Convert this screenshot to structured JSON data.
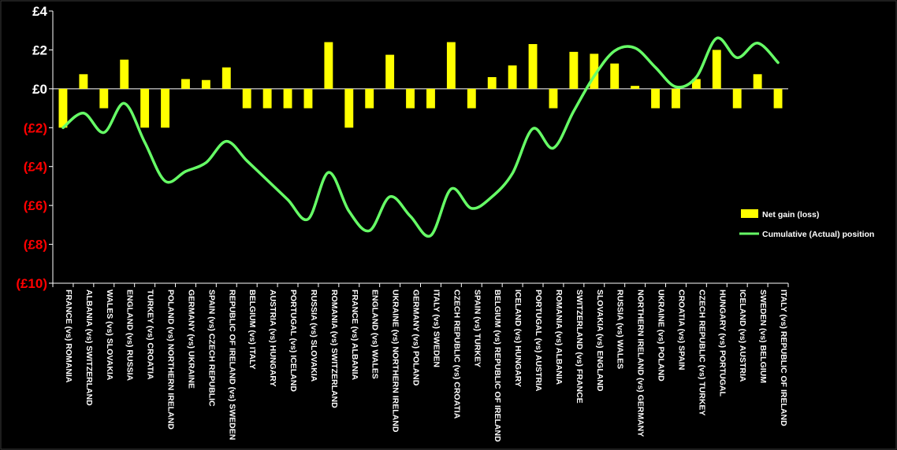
{
  "chart_data": {
    "type": "bar",
    "categories": [
      "FRANCE (vs) ROMANIA",
      "ALBANIA (vs) SWITZERLAND",
      "WALES (vs) SLOVAKIA",
      "ENGLAND (vs) RUSSIA",
      "TURKEY (vs) CROATIA",
      "POLAND (vs) NORTHERN IRELAND",
      "GERMANY (vs) UKRAINE",
      "SPAIN (vs) CZECH REPUBLIC",
      "REPUBLIC OF IRELAND (vs) SWEDEN",
      "BELGIUM (vs) ITALY",
      "AUSTRIA (vs) HUNGARY",
      "PORTUGAL (vs) ICELAND",
      "RUSSIA (vs) SLOVAKIA",
      "ROMANIA (vs) SWITZERLAND",
      "FRANCE (vs) ALBANIA",
      "ENGLAND (vs) WALES",
      "UKRAINE (vs) NORTHERN IRELAND",
      "GERMANY (vs) POLAND",
      "ITALY (vs) SWEDEN",
      "CZECH REPUBLIC (vs) CROATIA",
      "SPAIN (vs) TURKEY",
      "BELGIUM (vs) REPUBLIC OF IRELAND",
      "ICELAND (vs) HUNGARY",
      "PORTUGAL (vs) AUSTRIA",
      "ROMANIA (vs) ALBANIA",
      "SWITZERLAND (vs) FRANCE",
      "SLOVAKIA (vs) ENGLAND",
      "RUSSIA (vs) WALES",
      "NORTHERN IRELAND (vs) GERMANY",
      "UKRAINE (vs) POLAND",
      "CROATIA (vs) SPAIN",
      "CZECH REPUBLIC (vs) TURKEY",
      "HUNGARY (vs) PORTUGAL",
      "ICELAND (vs) AUSTRIA",
      "SWEDEN (vs) BELGIUM",
      "ITALY (vs) REPUBLIC OF IRELAND"
    ],
    "series": [
      {
        "name": "Net gain (loss)",
        "type": "bar",
        "color": "#FFFF00",
        "values": [
          -2,
          0.75,
          -1,
          1.5,
          -2,
          -2,
          0.5,
          0.45,
          1.1,
          -1,
          -1,
          -1,
          -1,
          2.4,
          -2,
          -1,
          1.75,
          -1,
          -1,
          2.4,
          -1,
          0.6,
          1.2,
          2.3,
          -1,
          1.9,
          1.8,
          1.3,
          0.15,
          -1,
          -1,
          0.5,
          2,
          -1,
          0.75,
          -1
        ]
      },
      {
        "name": "Cumulative (Actual) position",
        "type": "line",
        "smooth": true,
        "color": "#66FF66",
        "values": [
          -2,
          -1.25,
          -2.25,
          -0.75,
          -2.75,
          -4.75,
          -4.25,
          -3.8,
          -2.7,
          -3.7,
          -4.7,
          -5.7,
          -6.7,
          -4.3,
          -6.3,
          -7.3,
          -5.55,
          -6.55,
          -7.55,
          -5.15,
          -6.15,
          -5.55,
          -4.35,
          -2.05,
          -3.05,
          -1.15,
          0.65,
          1.95,
          2.1,
          1.1,
          0.1,
          0.6,
          2.6,
          1.6,
          2.35,
          1.35
        ]
      }
    ],
    "yticks": [
      {
        "value": 4,
        "label": "£4"
      },
      {
        "value": 2,
        "label": "£2"
      },
      {
        "value": 0,
        "label": "£0"
      },
      {
        "value": -2,
        "label": "(£2)"
      },
      {
        "value": -4,
        "label": "(£4)"
      },
      {
        "value": -6,
        "label": "(£6)"
      },
      {
        "value": -8,
        "label": "(£8)"
      },
      {
        "value": -10,
        "label": "(£10)"
      }
    ],
    "ylim": [
      -10,
      4
    ],
    "grid": false,
    "legend_position": "right",
    "positive_label_color": "#FFFFFF",
    "negative_label_color": "#FF0000",
    "background": "#000000"
  }
}
